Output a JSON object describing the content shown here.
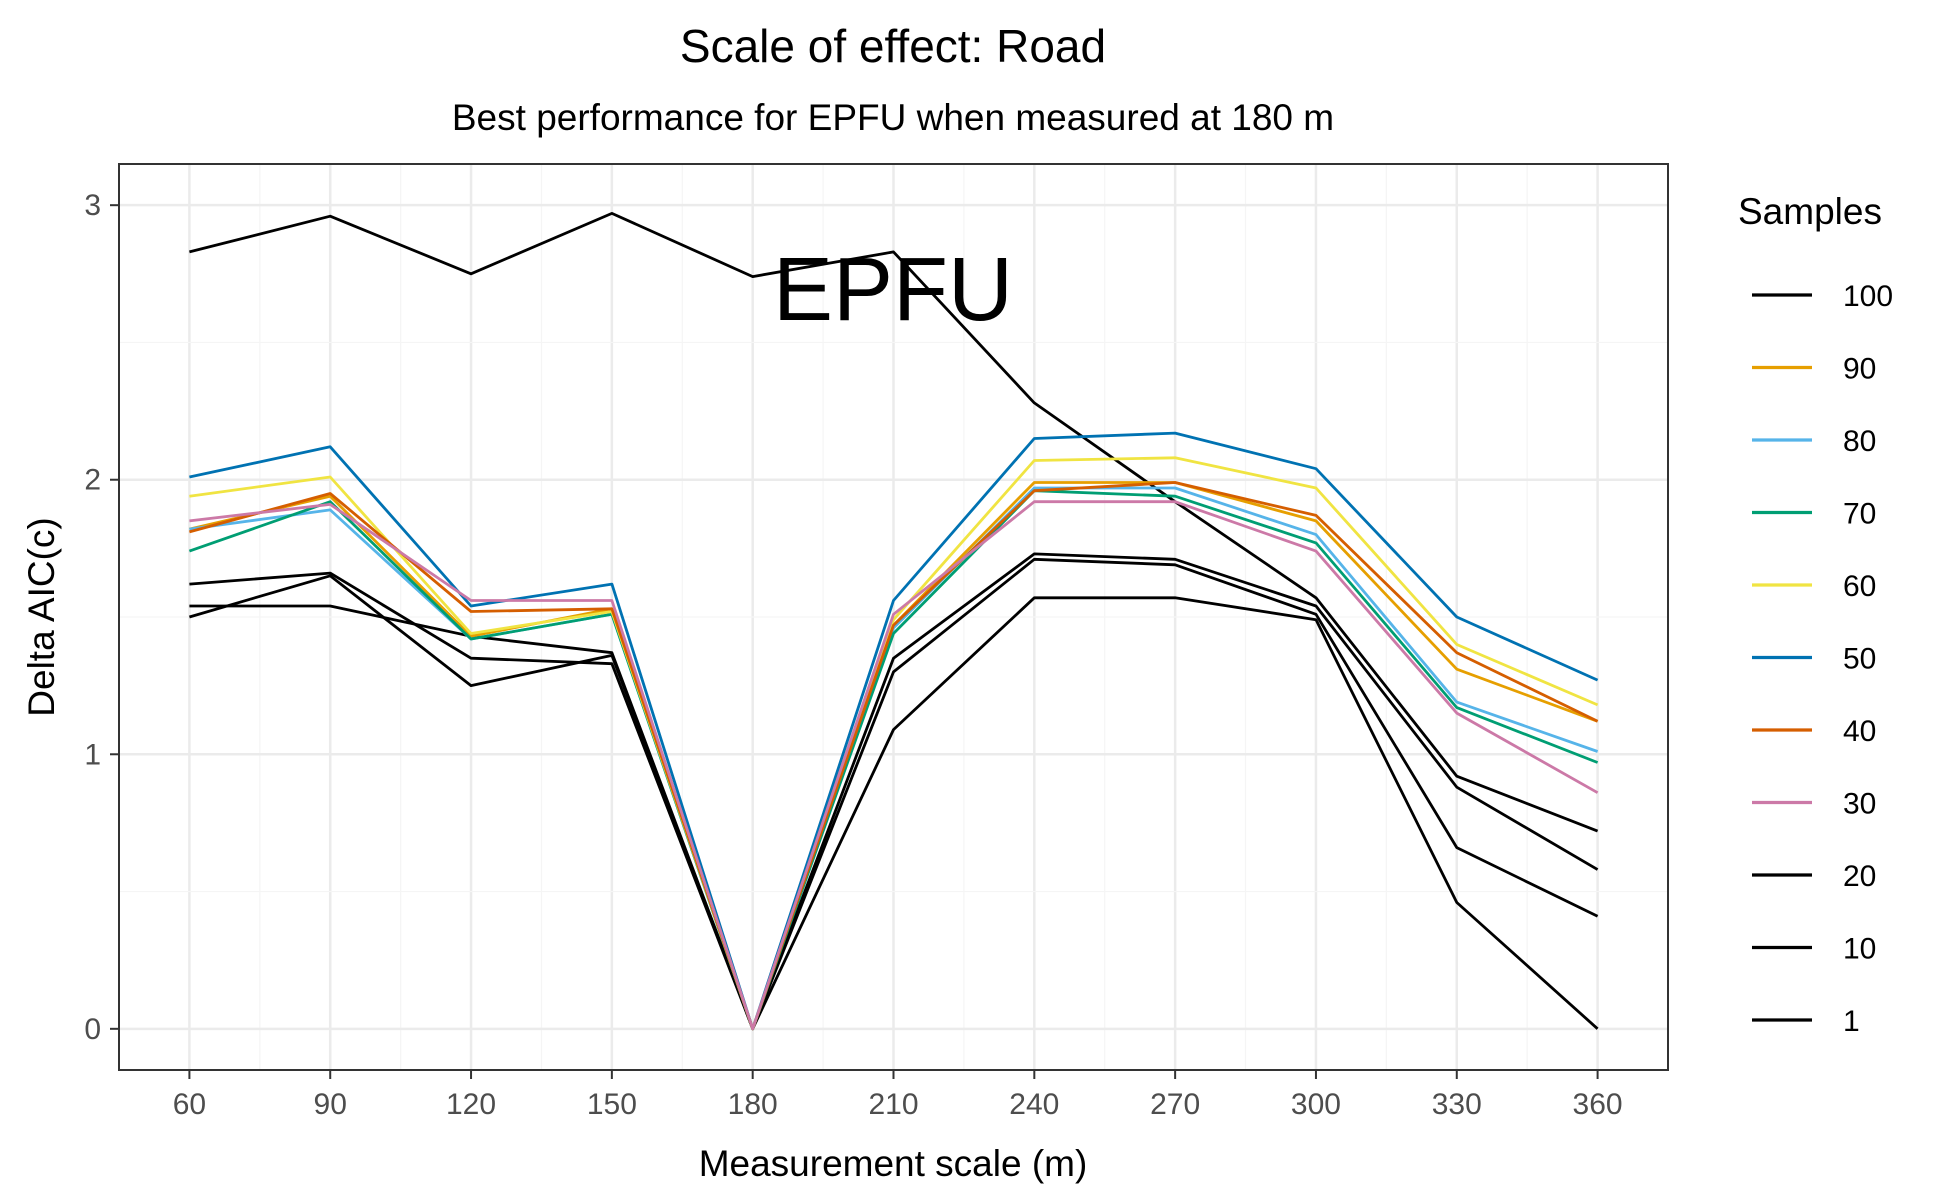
{
  "chart_data": {
    "type": "line",
    "title": "Scale of effect: Road",
    "subtitle": "Best performance for EPFU when measured at 180 m",
    "annotation": "EPFU",
    "xlabel": "Measurement scale (m)",
    "ylabel": "Delta AIC(c)",
    "x": [
      60,
      90,
      120,
      150,
      180,
      210,
      240,
      270,
      300,
      330,
      360
    ],
    "xlim": [
      45,
      375
    ],
    "ylim": [
      -0.15,
      3.15
    ],
    "yticks": [
      0,
      1,
      2,
      3
    ],
    "grid": true,
    "legend_title": "Samples",
    "legend_position": "right",
    "series": [
      {
        "name": "100",
        "color": "#000000",
        "values": [
          2.83,
          2.96,
          2.75,
          2.97,
          2.74,
          2.83,
          2.28,
          1.92,
          1.57,
          0.92,
          0.72
        ]
      },
      {
        "name": "90",
        "color": "#E69F00",
        "values": [
          1.82,
          1.94,
          1.43,
          1.53,
          0.0,
          1.47,
          1.99,
          1.99,
          1.85,
          1.31,
          1.12
        ]
      },
      {
        "name": "80",
        "color": "#56B4E9",
        "values": [
          1.82,
          1.89,
          1.42,
          1.51,
          0.0,
          1.46,
          1.97,
          1.97,
          1.8,
          1.19,
          1.01
        ]
      },
      {
        "name": "70",
        "color": "#009E73",
        "values": [
          1.74,
          1.92,
          1.42,
          1.51,
          0.0,
          1.44,
          1.96,
          1.94,
          1.77,
          1.17,
          0.97
        ]
      },
      {
        "name": "60",
        "color": "#F0E442",
        "values": [
          1.94,
          2.01,
          1.44,
          1.52,
          0.0,
          1.49,
          2.07,
          2.08,
          1.97,
          1.4,
          1.18
        ]
      },
      {
        "name": "50",
        "color": "#0072B2",
        "values": [
          2.01,
          2.12,
          1.54,
          1.62,
          0.0,
          1.56,
          2.15,
          2.17,
          2.04,
          1.5,
          1.27
        ]
      },
      {
        "name": "40",
        "color": "#D55E00",
        "values": [
          1.81,
          1.95,
          1.52,
          1.53,
          0.0,
          1.47,
          1.96,
          1.99,
          1.87,
          1.37,
          1.12
        ]
      },
      {
        "name": "30",
        "color": "#CC79A7",
        "values": [
          1.85,
          1.91,
          1.56,
          1.56,
          0.0,
          1.51,
          1.92,
          1.92,
          1.74,
          1.15,
          0.86
        ]
      },
      {
        "name": "20",
        "color": "#000000",
        "values": [
          1.62,
          1.66,
          1.35,
          1.33,
          0.0,
          1.35,
          1.73,
          1.71,
          1.54,
          0.88,
          0.58
        ]
      },
      {
        "name": "10",
        "color": "#000000",
        "values": [
          1.5,
          1.65,
          1.25,
          1.36,
          0.0,
          1.3,
          1.71,
          1.69,
          1.51,
          0.66,
          0.41
        ]
      },
      {
        "name": "1",
        "color": "#000000",
        "values": [
          1.54,
          1.54,
          1.43,
          1.37,
          0.0,
          1.09,
          1.57,
          1.57,
          1.49,
          0.46,
          0.0
        ]
      }
    ]
  }
}
